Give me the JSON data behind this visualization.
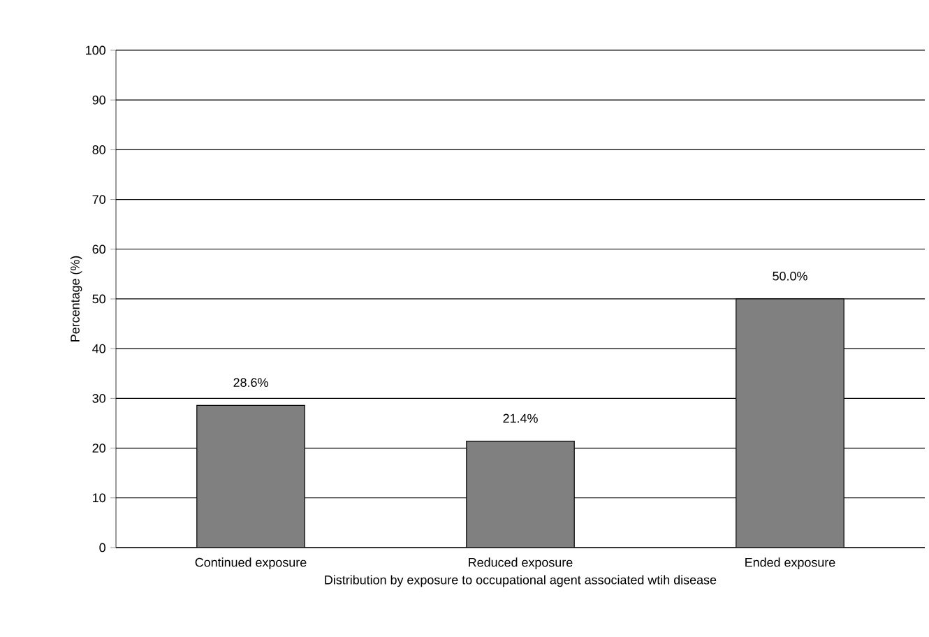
{
  "chart_data": {
    "type": "bar",
    "categories": [
      "Continued exposure",
      "Reduced exposure",
      "Ended exposure"
    ],
    "values": [
      28.6,
      21.4,
      50.0
    ],
    "value_labels": [
      "28.6%",
      "21.4%",
      "50.0%"
    ],
    "color": "#808080",
    "xlabel": "Distribution by exposure to occupational agent associated wtih disease",
    "ylabel": "Percentage (%)",
    "ylim": [
      0,
      100
    ],
    "yticks": [
      0,
      10,
      20,
      30,
      40,
      50,
      60,
      70,
      80,
      90,
      100
    ],
    "grid": "y"
  }
}
